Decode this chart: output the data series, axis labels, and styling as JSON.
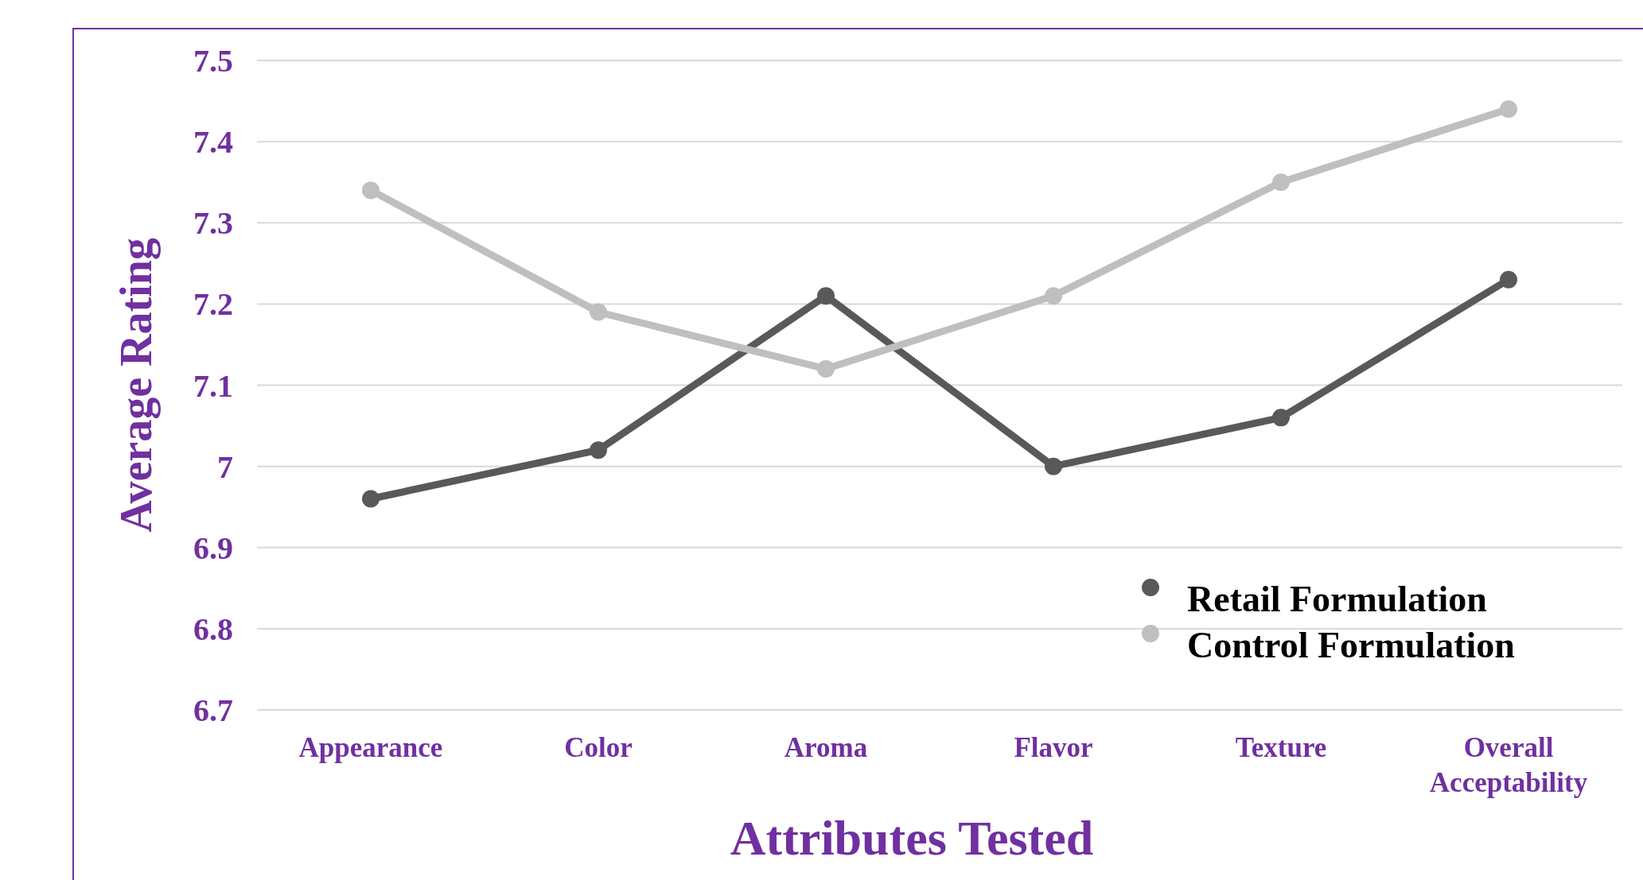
{
  "chart_data": {
    "type": "line",
    "xlabel": "Attributes Tested",
    "ylabel": "Average Rating",
    "categories": [
      "Appearance",
      "Color",
      "Aroma",
      "Flavor",
      "Texture",
      "Overall Acceptability"
    ],
    "series": [
      {
        "name": "Retail Formulation",
        "color": "#595959",
        "values": [
          6.96,
          7.02,
          7.21,
          7.0,
          7.06,
          7.23
        ]
      },
      {
        "name": "Control Formulation",
        "color": "#bfbfbf",
        "values": [
          7.34,
          7.19,
          7.12,
          7.21,
          7.35,
          7.44
        ]
      }
    ],
    "ylim": [
      6.7,
      7.5
    ],
    "yticks": [
      6.7,
      6.8,
      6.9,
      7,
      7.1,
      7.2,
      7.3,
      7.4,
      7.5
    ],
    "grid": "y",
    "legend": "bottom right",
    "marker": "circle",
    "line_style": "solid"
  }
}
